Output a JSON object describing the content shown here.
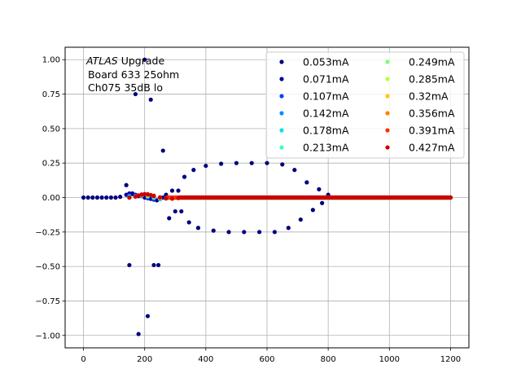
{
  "chart_data": {
    "type": "scatter",
    "annotation": {
      "line1_italic": "ATLAS",
      "line1_rest": " Upgrade",
      "line2": " Board 633 25ohm",
      "line3": " Ch075 35dB lo"
    },
    "xlim": [
      -60,
      1260
    ],
    "ylim": [
      -1.09,
      1.09
    ],
    "x_ticks": [
      0,
      200,
      400,
      600,
      800,
      1000,
      1200
    ],
    "y_ticks": [
      -1.0,
      -0.75,
      -0.5,
      -0.25,
      0.0,
      0.25,
      0.5,
      0.75,
      1.0
    ],
    "x_tick_labels": [
      "0",
      "200",
      "400",
      "600",
      "800",
      "1000",
      "1200"
    ],
    "y_tick_labels": [
      "−1.00",
      "−0.75",
      "−0.50",
      "−0.25",
      "0.00",
      "0.25",
      "0.50",
      "0.75",
      "1.00"
    ],
    "grid": true,
    "legend_location": "upper-right",
    "legend_columns": 2,
    "series": [
      {
        "name": "0.053mA",
        "color": "#00007f",
        "x": [
          0,
          15,
          30,
          45,
          60,
          75,
          90,
          105,
          120,
          140,
          150,
          160,
          170,
          180,
          200,
          210,
          220,
          230,
          245,
          260,
          270,
          280,
          290,
          300,
          310,
          320,
          330,
          345,
          360,
          375,
          400,
          425,
          450,
          475,
          500,
          525,
          550,
          575,
          600,
          625,
          650,
          670,
          690,
          710,
          730,
          750,
          770,
          780,
          800,
          850,
          900,
          950,
          1000,
          1050,
          1100,
          1150,
          1200
        ],
        "y": [
          0,
          0,
          0,
          0,
          0,
          0,
          0,
          0,
          0.005,
          0.09,
          -0.49,
          0.03,
          0.75,
          -0.99,
          1.0,
          -0.86,
          0.71,
          -0.49,
          -0.49,
          0.34,
          0.02,
          -0.15,
          0.05,
          -0.1,
          0.05,
          -0.1,
          0.15,
          -0.18,
          0.2,
          -0.22,
          0.23,
          -0.24,
          0.245,
          -0.25,
          0.25,
          -0.25,
          0.25,
          -0.25,
          0.25,
          -0.25,
          0.24,
          -0.22,
          0.2,
          -0.16,
          0.11,
          -0.09,
          0.06,
          -0.04,
          0.02,
          0,
          0,
          0,
          0,
          0,
          0,
          0,
          0
        ]
      },
      {
        "name": "0.071mA",
        "color": "#00009f",
        "x": [
          140,
          150,
          160,
          170,
          180,
          200,
          210,
          220,
          230,
          240,
          250,
          260,
          280,
          300
        ],
        "y": [
          0.02,
          0.03,
          0.025,
          0.02,
          0.01,
          0.0,
          -0.005,
          -0.01,
          -0.015,
          -0.02,
          -0.01,
          0.0,
          0.0,
          0.0
        ]
      },
      {
        "name": "0.107mA",
        "color": "#0040ff",
        "x": [
          150,
          170,
          190,
          210,
          230,
          250,
          270
        ],
        "y": [
          0.015,
          0.015,
          0.01,
          0.0,
          -0.01,
          -0.012,
          -0.005
        ]
      },
      {
        "name": "0.142mA",
        "color": "#0090ff",
        "x": [
          150,
          170,
          190,
          210,
          230,
          250,
          270
        ],
        "y": [
          0.01,
          0.012,
          0.015,
          0.005,
          -0.005,
          -0.01,
          -0.005
        ]
      },
      {
        "name": "0.178mA",
        "color": "#10e0e6",
        "x": [
          150,
          170,
          190,
          210,
          230,
          250,
          270
        ],
        "y": [
          0.005,
          0.01,
          0.015,
          0.01,
          0.0,
          -0.008,
          -0.006
        ]
      },
      {
        "name": "0.213mA",
        "color": "#40ffb7",
        "x": [
          150,
          170,
          190,
          210,
          230,
          250,
          270
        ],
        "y": [
          0.0,
          0.008,
          0.015,
          0.012,
          0.004,
          -0.006,
          -0.006
        ]
      },
      {
        "name": "0.249mA",
        "color": "#80ff77",
        "x": [
          150,
          170,
          190,
          210,
          230,
          250,
          270
        ],
        "y": [
          0.0,
          0.006,
          0.015,
          0.014,
          0.006,
          -0.004,
          -0.006
        ]
      },
      {
        "name": "0.285mA",
        "color": "#b7ff40",
        "x": [
          150,
          170,
          190,
          210,
          230,
          250,
          270
        ],
        "y": [
          0.0,
          0.005,
          0.016,
          0.016,
          0.008,
          -0.002,
          -0.006
        ]
      },
      {
        "name": "0.32mA",
        "color": "#ffc800",
        "x": [
          150,
          170,
          190,
          210,
          230,
          250,
          270
        ],
        "y": [
          0.0,
          0.005,
          0.017,
          0.018,
          0.01,
          0.0,
          -0.006
        ]
      },
      {
        "name": "0.356mA",
        "color": "#ff8000",
        "x": [
          150,
          170,
          190,
          210,
          230,
          250,
          270
        ],
        "y": [
          0.0,
          0.006,
          0.018,
          0.02,
          0.012,
          0.0,
          -0.006
        ]
      },
      {
        "name": "0.391mA",
        "color": "#ff3000",
        "x": [
          150,
          170,
          190,
          210,
          230,
          250,
          270
        ],
        "y": [
          0.0,
          0.007,
          0.02,
          0.022,
          0.014,
          0.002,
          -0.006
        ]
      },
      {
        "name": "0.427mA",
        "color": "#cc0000",
        "x": [
          150,
          170,
          180,
          190,
          200,
          210,
          220,
          230,
          250,
          270,
          290,
          310
        ],
        "y": [
          0.0,
          0.008,
          0.016,
          0.022,
          0.025,
          0.024,
          0.018,
          0.01,
          0.0,
          -0.006,
          -0.008,
          -0.004
        ]
      }
    ]
  }
}
